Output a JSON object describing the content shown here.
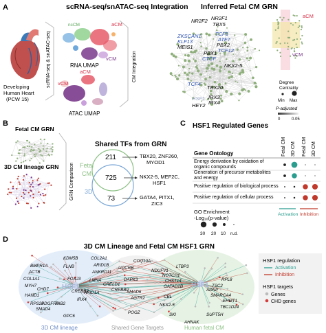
{
  "panelA": {
    "letter": "A",
    "title": "scRNA-seq/snATAC-seq Integration",
    "grn_title": "Inferred Fetal CM GRN",
    "vertical_seq_label": "scRNA-seq & snATAC-seq",
    "heart_label_1": "Developing",
    "heart_label_2": "Human Heart",
    "heart_label_3": "(PCW 15)",
    "rna_umap_label": "RNA UMAP",
    "atac_umap_label": "ATAC UMAP",
    "cm_integration_label": "CM Integration",
    "umap_labels": {
      "acm": "aCM",
      "vcm": "vCM",
      "ncm": "ncCM"
    },
    "genes_black": [
      "NR2F2",
      "NR2F1",
      "TBX5",
      "MEIS1",
      "PBX1",
      "PBX2",
      "NKX2-5",
      "TBX20",
      "IRX3",
      "IRX4",
      "HEY2"
    ],
    "genes_blue": [
      "ZKSCAN1",
      "KLF13",
      "TCF3",
      "ATF7",
      "TCF12",
      "CTCF",
      "TCF4"
    ],
    "gene_grey": "HSF1",
    "side_labels": {
      "acm": "aCM",
      "vcm": "vCM"
    },
    "legend": {
      "degree_title_1": "Degree",
      "degree_title_2": "Centrality",
      "min": "Min",
      "max": "Max",
      "padj_1": "P-adjusted",
      "padj_0": "0",
      "padj_005": "0.05"
    }
  },
  "panelB": {
    "letter": "B",
    "fetal_title": "Fetal CM GRN",
    "lineage_title": "3D CM lineage GRN",
    "grn_comparison": "GRN Comparison",
    "venn_title": "Shared TFs from GRN",
    "label_fetal_1": "Fetal",
    "label_fetal_2": "CM",
    "label_3d": "3D",
    "counts": {
      "fetal_only": "211",
      "shared": "725",
      "threed_only": "73"
    },
    "annot": [
      {
        "line1": "TBX20, ZNF260,",
        "line2": "MYOD1"
      },
      {
        "line1": "NKX2-5, MEF2C,",
        "line2": "HSF1"
      },
      {
        "line1": "GATA4, PITX1,",
        "line2": "ZIC3"
      }
    ]
  },
  "panelC": {
    "letter": "C",
    "title": "HSF1 Regulated Genes",
    "col_headers": [
      "Fetal CM",
      "3D CM",
      "Fetal CM",
      "3D CM"
    ],
    "ontology_title": "Gene Ontology",
    "terms": [
      {
        "line1": "Energy derivation by oxidation of",
        "line2": "organic compounds"
      },
      {
        "line1": "Generation of precursor metabolites",
        "line2": "and energy"
      },
      {
        "line1": "Positive regulation of biological process",
        "line2": ""
      },
      {
        "line1": "Positive regulation of cellular process",
        "line2": ""
      }
    ],
    "dots": [
      [
        {
          "size": 3,
          "color": "#222222"
        },
        {
          "size": 7,
          "color": "#2a9d8f"
        },
        {
          "size": 0,
          "color": "#222222"
        },
        {
          "size": 0,
          "color": "#222222"
        }
      ],
      [
        {
          "size": 3,
          "color": "#222222"
        },
        {
          "size": 6,
          "color": "#2a9d8f"
        },
        {
          "size": 0,
          "color": "#222222"
        },
        {
          "size": 0,
          "color": "#222222"
        }
      ],
      [
        {
          "size": 1.5,
          "color": "#222222"
        },
        {
          "size": 2,
          "color": "#222222"
        },
        {
          "size": 6,
          "color": "#c0392b"
        },
        {
          "size": 6.5,
          "color": "#c0392b"
        }
      ],
      [
        {
          "size": 1.5,
          "color": "#222222"
        },
        {
          "size": 2,
          "color": "#222222"
        },
        {
          "size": 6,
          "color": "#c0392b"
        },
        {
          "size": 6.5,
          "color": "#c0392b"
        }
      ]
    ],
    "legend_title_1": "GO Enrichment",
    "legend_title_2": "-Log₁₀(p-value)",
    "legend_values": [
      "30",
      "20",
      "10",
      "n.d."
    ],
    "activation": "Activation",
    "inhibition": "Inhibition"
  },
  "panelD": {
    "letter": "D",
    "title": "3D CM Lineage and Fetal CM HSF1 GRN",
    "left_hub": "HSF1",
    "right_hub": "HSF1",
    "genes_left": [
      "KDM5B",
      "COL2A1",
      "ARID1B",
      "BMPR1A",
      "FLNB",
      "ANKRD11",
      "ACTB",
      "LMNA",
      "COL1A1",
      "MYH7",
      "CHD7",
      "HAND1",
      "PDGFRA",
      "RPS26",
      "SMAD4",
      "GPC6",
      "TAB2",
      "IRX4",
      "ARID1A",
      "CREBBP",
      "FOXJ3"
    ],
    "genes_middle": [
      "COQ10A",
      "UQCRB",
      "NDUFV1",
      "DAPK3",
      "SMAD6",
      "AGTR2",
      "POGZ",
      "CREBBP",
      "CRELD1"
    ],
    "genes_right": [
      "LTBP3",
      "NOTCH1",
      "CHST14",
      "GATAD2B",
      "CBL",
      "NKX2-5",
      "RPL8",
      "TSC2",
      "ADNP",
      "SMARCA4",
      "EHMT1",
      "TBC1D24",
      "SKI",
      "SUPT5H",
      "AHNAK"
    ],
    "region_left": "3D CM lineage",
    "region_mid": "Shared Gene Targets",
    "region_right": "Human fetal CM",
    "legend": {
      "reg_title": "HSF1 regulation",
      "activation": "Activation",
      "inhibition": "Inhibition",
      "targets_title": "HSF1 targets",
      "genes": "Genes",
      "chd": "CHD genes"
    }
  }
}
